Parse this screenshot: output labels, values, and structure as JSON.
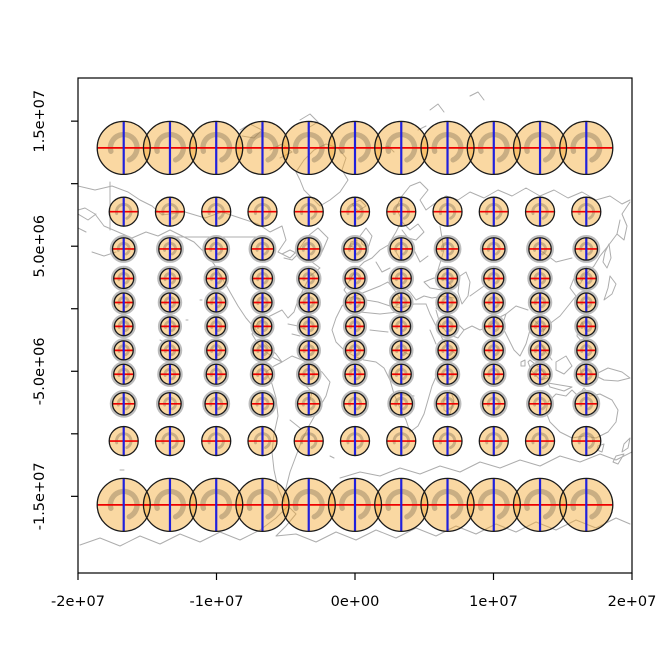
{
  "figure": {
    "background_color": "#FFFFFF",
    "map_background": "world-coastlines-and-country-borders-light-gray"
  },
  "chart_data": {
    "type": "scatter",
    "title": "",
    "xlabel": "",
    "ylabel": "",
    "xlim": [
      -20000000,
      20000000
    ],
    "ylim": [
      -21130000,
      18450000
    ],
    "grid": false,
    "legend": null,
    "x_ticks": [
      {
        "value": -20000000,
        "label": "-2e+07"
      },
      {
        "value": -10000000,
        "label": "-1e+07"
      },
      {
        "value": 0,
        "label": "0e+00"
      },
      {
        "value": 10000000,
        "label": "1e+07"
      },
      {
        "value": 20000000,
        "label": "2e+07"
      }
    ],
    "y_ticks": [
      {
        "value": 15000000,
        "label": "1.5e+07"
      },
      {
        "value": 10000000,
        "label": ""
      },
      {
        "value": 5000000,
        "label": "5.0e+06"
      },
      {
        "value": 0,
        "label": ""
      },
      {
        "value": -5000000,
        "label": "-5.0e+06"
      },
      {
        "value": -10000000,
        "label": ""
      },
      {
        "value": -15000000,
        "label": "-1.5e+07"
      }
    ],
    "symbol_grid": {
      "description": "11 x 11 grid of distortion-indicatrix circles: orange fill, black outline, red horizontal diameter, blue vertical diameter, faint tan arc marker; gray true-circle halo visible around the small mid-latitude circles",
      "columns_x": [
        -16700000,
        -13360000,
        -10020000,
        -6680000,
        -3340000,
        0,
        3340000,
        6680000,
        10020000,
        13360000,
        16700000
      ],
      "rows": [
        {
          "y": 12860000,
          "radius_px": 26.5
        },
        {
          "y": 7760000,
          "radius_px": 14.5
        },
        {
          "y": 4780000,
          "radius_px": 11.2
        },
        {
          "y": 2420000,
          "radius_px": 10.0
        },
        {
          "y": 500000,
          "radius_px": 9.5
        },
        {
          "y": -1410000,
          "radius_px": 9.3
        },
        {
          "y": -3330000,
          "radius_px": 9.5
        },
        {
          "y": -5240000,
          "radius_px": 10.0
        },
        {
          "y": -7600000,
          "radius_px": 11.2
        },
        {
          "y": -10580000,
          "radius_px": 14.5
        },
        {
          "y": -15680000,
          "radius_px": 26.5
        }
      ]
    }
  },
  "style": {
    "symbol_fill": "#F4A830",
    "symbol_fill_opacity": 0.45,
    "symbol_border": "#1A1A1A",
    "horizontal_line_color": "#EE0000",
    "vertical_line_color": "#2020DD",
    "inner_arc_color": "#7A6A52",
    "inner_arc_opacity": 0.38,
    "halo_color": "#BDBDBD",
    "map_line_color": "#ADADAD",
    "axis_color": "#000000",
    "text_color": "#000000"
  }
}
